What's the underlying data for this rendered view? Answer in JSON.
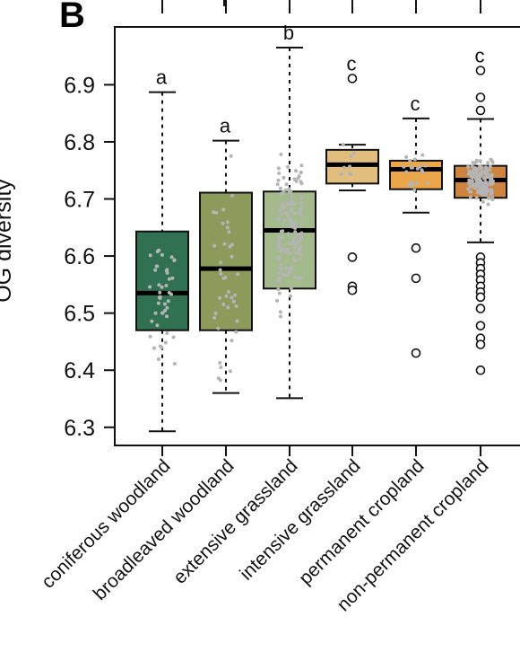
{
  "panel_label": "B",
  "chart_data": {
    "type": "box",
    "title": "",
    "xlabel": "",
    "ylabel": "OG diversity",
    "ylim": [
      6.28,
      6.98
    ],
    "yticks": [
      6.3,
      6.4,
      6.5,
      6.6,
      6.7,
      6.8,
      6.9
    ],
    "ytick_labels": [
      "6.3",
      "6.4",
      "6.5",
      "6.6",
      "6.7",
      "6.8",
      "6.9"
    ],
    "categories": [
      "coniferous woodland",
      "broadleaved woodland",
      "extensive grassland",
      "intensive grassland",
      "permanent cropland",
      "non-permanent cropland"
    ],
    "groups": [
      {
        "category": "coniferous woodland",
        "color": "#2f7150",
        "q1": 6.47,
        "median": 6.535,
        "q3": 6.643,
        "whisker_low": 6.293,
        "whisker_high": 6.887,
        "outliers": [],
        "letter": "a"
      },
      {
        "category": "broadleaved woodland",
        "color": "#8c9b5c",
        "q1": 6.47,
        "median": 6.578,
        "q3": 6.711,
        "whisker_low": 6.36,
        "whisker_high": 6.802,
        "outliers": [],
        "letter": "a"
      },
      {
        "category": "extensive grassland",
        "color": "#a4ba8c",
        "q1": 6.543,
        "median": 6.645,
        "q3": 6.713,
        "whisker_low": 6.351,
        "whisker_high": 6.965,
        "outliers": [],
        "letter": "b"
      },
      {
        "category": "intensive grassland",
        "color": "#e2be7e",
        "q1": 6.727,
        "median": 6.76,
        "q3": 6.786,
        "whisker_low": 6.715,
        "whisker_high": 6.795,
        "outliers": [
          6.911,
          6.598,
          6.547,
          6.54
        ],
        "letter": "c"
      },
      {
        "category": "permanent cropland",
        "color": "#eba64a",
        "q1": 6.717,
        "median": 6.752,
        "q3": 6.767,
        "whisker_low": 6.676,
        "whisker_high": 6.841,
        "outliers": [
          6.614,
          6.561,
          6.43
        ],
        "letter": "c"
      },
      {
        "category": "non-permanent cropland",
        "color": "#cd843f",
        "q1": 6.702,
        "median": 6.733,
        "q3": 6.758,
        "whisker_low": 6.624,
        "whisker_high": 6.84,
        "outliers": [
          6.925,
          6.878,
          6.855,
          6.598,
          6.588,
          6.578,
          6.568,
          6.558,
          6.547,
          6.537,
          6.528,
          6.508,
          6.478,
          6.456,
          6.445,
          6.4
        ],
        "letter": "c"
      }
    ]
  },
  "colors": {
    "axis": "#111111",
    "median": "#000000",
    "box_stroke": "#111111",
    "jitter": "#b4b4b4",
    "outlier_stroke": "#111111"
  }
}
